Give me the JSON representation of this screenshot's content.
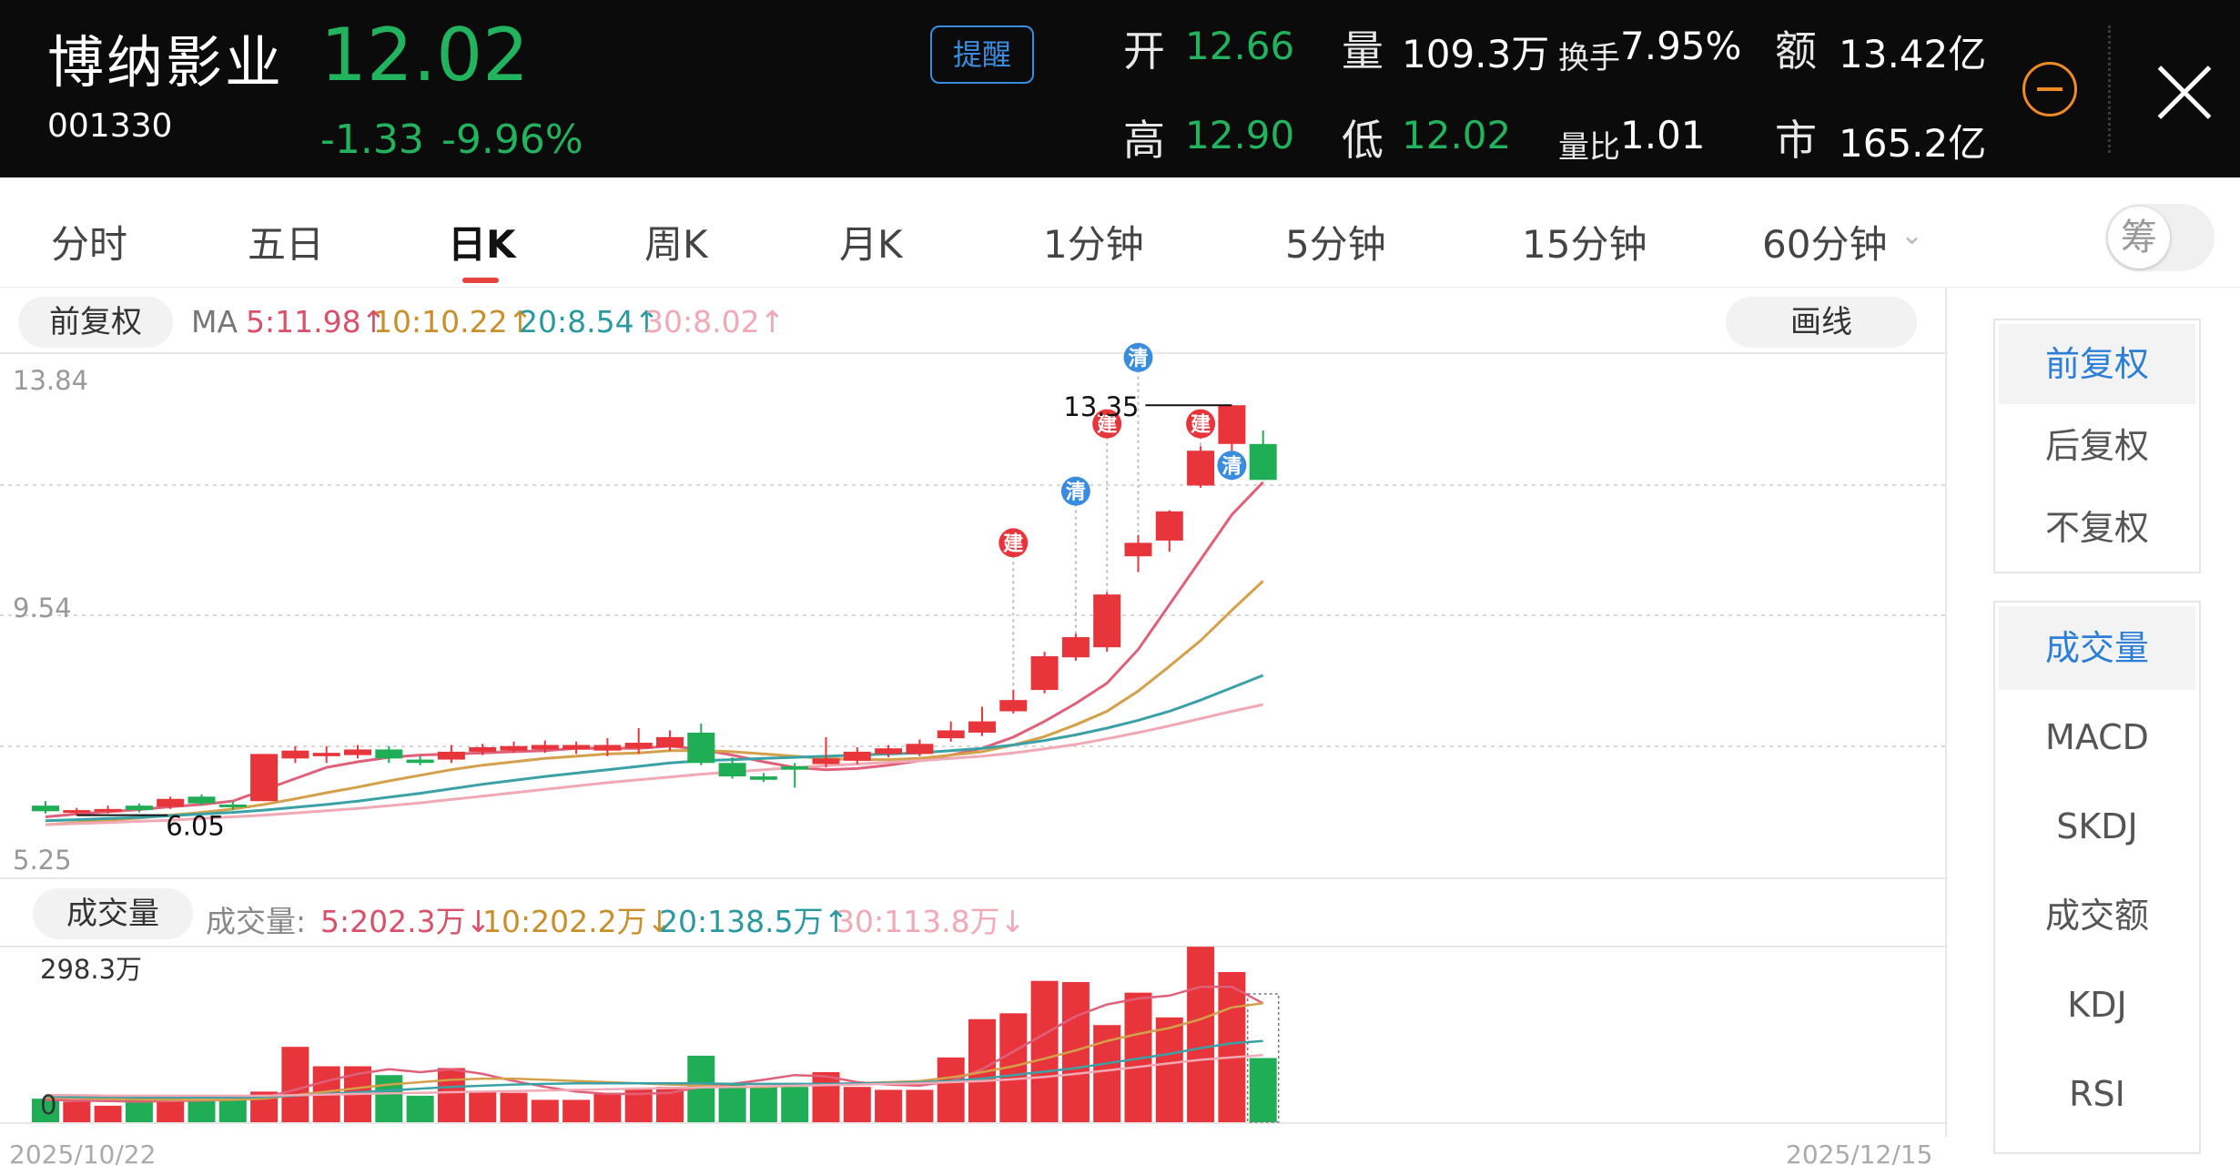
{
  "header": {
    "name": "博纳影业",
    "code": "001330",
    "price": "12.02",
    "change": "-1.33",
    "change_pct": "-9.96%",
    "remind": "提醒",
    "quotes": {
      "open_label": "开",
      "open": "12.66",
      "volume_label": "量",
      "volume": "109.3万",
      "turnover_label": "换手",
      "turnover": "7.95%",
      "amount_label": "额",
      "amount": "13.42亿",
      "high_label": "高",
      "high": "12.90",
      "low_label": "低",
      "low": "12.02",
      "volratio_label": "量比",
      "volratio": "1.01",
      "mcap_label": "市",
      "mcap": "165.2亿"
    },
    "colors": {
      "up": "#e8353b",
      "down": "#1fae55",
      "accent": "#3a8dde",
      "orange": "#f08a24"
    }
  },
  "tabs": [
    "分时",
    "五日",
    "日K",
    "周K",
    "月K",
    "1分钟",
    "5分钟",
    "15分钟",
    "60分钟"
  ],
  "active_tab": "日K",
  "chip_label": "筹",
  "kline_header": {
    "adjust": "前复权",
    "ma_label": "MA",
    "ma5": "5:11.98↑",
    "ma10": "10:10.22↑",
    "ma20": "20:8.54↑",
    "ma30": "30:8.02↑",
    "draw_line": "画线"
  },
  "volume_header": {
    "label": "成交量",
    "prefix": "成交量:",
    "ma5": "5:202.3万↓",
    "ma10": "10:202.2万↓",
    "ma20": "20:138.5万↑",
    "ma30": "30:113.8万↓"
  },
  "right_panel": {
    "adjust_options": [
      "前复权",
      "后复权",
      "不复权"
    ],
    "indicator_options": [
      "成交量",
      "MACD",
      "SKDJ",
      "成交额",
      "KDJ",
      "RSI"
    ]
  },
  "chart_data": {
    "type": "candlestick",
    "y_axis_labels": [
      "13.84",
      "9.54",
      "5.25"
    ],
    "ylim": [
      5.25,
      13.84
    ],
    "vol_axis_labels": [
      "298.3万",
      "0"
    ],
    "vol_max": 298.3,
    "x_start_label": "2025/10/22",
    "x_end_label": "2025/12/15",
    "max_marker": "13.35",
    "min_marker": "6.05",
    "candles": [
      {
        "o": 6.22,
        "c": 6.12,
        "h": 6.3,
        "l": 6.08,
        "v": 40
      },
      {
        "o": 6.1,
        "c": 6.14,
        "h": 6.18,
        "l": 6.05,
        "v": 35
      },
      {
        "o": 6.12,
        "c": 6.16,
        "h": 6.22,
        "l": 6.08,
        "v": 28
      },
      {
        "o": 6.22,
        "c": 6.14,
        "h": 6.26,
        "l": 6.1,
        "v": 38
      },
      {
        "o": 6.2,
        "c": 6.34,
        "h": 6.38,
        "l": 6.16,
        "v": 40
      },
      {
        "o": 6.38,
        "c": 6.26,
        "h": 6.42,
        "l": 6.22,
        "v": 38
      },
      {
        "o": 6.24,
        "c": 6.2,
        "h": 6.3,
        "l": 6.14,
        "v": 38
      },
      {
        "o": 6.3,
        "c": 7.14,
        "h": 7.14,
        "l": 6.3,
        "v": 52
      },
      {
        "o": 7.06,
        "c": 7.2,
        "h": 7.28,
        "l": 6.98,
        "v": 128
      },
      {
        "o": 7.1,
        "c": 7.16,
        "h": 7.28,
        "l": 6.98,
        "v": 95
      },
      {
        "o": 7.12,
        "c": 7.22,
        "h": 7.3,
        "l": 7.06,
        "v": 95
      },
      {
        "o": 7.22,
        "c": 7.06,
        "h": 7.28,
        "l": 6.98,
        "v": 80
      },
      {
        "o": 7.04,
        "c": 6.98,
        "h": 7.1,
        "l": 6.94,
        "v": 45
      },
      {
        "o": 7.04,
        "c": 7.18,
        "h": 7.3,
        "l": 6.98,
        "v": 92
      },
      {
        "o": 7.18,
        "c": 7.26,
        "h": 7.32,
        "l": 7.12,
        "v": 52
      },
      {
        "o": 7.2,
        "c": 7.28,
        "h": 7.36,
        "l": 7.16,
        "v": 50
      },
      {
        "o": 7.22,
        "c": 7.3,
        "h": 7.38,
        "l": 7.16,
        "v": 38
      },
      {
        "o": 7.22,
        "c": 7.3,
        "h": 7.36,
        "l": 7.14,
        "v": 38
      },
      {
        "o": 7.2,
        "c": 7.3,
        "h": 7.42,
        "l": 7.1,
        "v": 50
      },
      {
        "o": 7.24,
        "c": 7.34,
        "h": 7.6,
        "l": 7.14,
        "v": 58
      },
      {
        "o": 7.26,
        "c": 7.44,
        "h": 7.56,
        "l": 7.2,
        "v": 60
      },
      {
        "o": 7.52,
        "c": 6.98,
        "h": 7.68,
        "l": 6.94,
        "v": 113
      },
      {
        "o": 6.98,
        "c": 6.74,
        "h": 7.08,
        "l": 6.7,
        "v": 64
      },
      {
        "o": 6.74,
        "c": 6.68,
        "h": 6.8,
        "l": 6.64,
        "v": 60
      },
      {
        "o": 6.92,
        "c": 6.86,
        "h": 6.98,
        "l": 6.54,
        "v": 60
      },
      {
        "o": 6.96,
        "c": 7.06,
        "h": 7.44,
        "l": 6.9,
        "v": 85
      },
      {
        "o": 7.02,
        "c": 7.18,
        "h": 7.26,
        "l": 6.96,
        "v": 60
      },
      {
        "o": 7.14,
        "c": 7.24,
        "h": 7.3,
        "l": 7.08,
        "v": 55
      },
      {
        "o": 7.14,
        "c": 7.32,
        "h": 7.4,
        "l": 7.1,
        "v": 55
      },
      {
        "o": 7.42,
        "c": 7.56,
        "h": 7.72,
        "l": 7.36,
        "v": 110
      },
      {
        "o": 7.52,
        "c": 7.72,
        "h": 7.98,
        "l": 7.46,
        "v": 175
      },
      {
        "o": 7.9,
        "c": 8.1,
        "h": 8.28,
        "l": 7.86,
        "v": 185
      },
      {
        "o": 8.28,
        "c": 8.88,
        "h": 8.96,
        "l": 8.22,
        "v": 240
      },
      {
        "o": 8.86,
        "c": 9.22,
        "h": 9.28,
        "l": 8.8,
        "v": 238
      },
      {
        "o": 9.04,
        "c": 9.98,
        "h": 10.02,
        "l": 8.96,
        "v": 165
      },
      {
        "o": 10.66,
        "c": 10.9,
        "h": 11.04,
        "l": 10.38,
        "v": 220
      },
      {
        "o": 10.94,
        "c": 11.46,
        "h": 11.48,
        "l": 10.74,
        "v": 178
      },
      {
        "o": 11.92,
        "c": 12.54,
        "h": 12.62,
        "l": 11.88,
        "v": 298
      },
      {
        "o": 12.66,
        "c": 13.35,
        "h": 13.35,
        "l": 12.02,
        "v": 255
      },
      {
        "o": 12.66,
        "c": 12.02,
        "h": 12.9,
        "l": 12.02,
        "v": 109
      }
    ],
    "ma_series": [
      {
        "name": "MA5",
        "color": "#e0607a",
        "values": [
          6.02,
          6.07,
          6.11,
          6.15,
          6.2,
          6.24,
          6.3,
          6.5,
          6.7,
          6.9,
          7.0,
          7.08,
          7.12,
          7.14,
          7.16,
          7.18,
          7.2,
          7.24,
          7.24,
          7.24,
          7.28,
          7.22,
          7.12,
          7.0,
          6.9,
          6.86,
          6.88,
          6.94,
          7.02,
          7.12,
          7.24,
          7.44,
          7.72,
          8.04,
          8.4,
          9.0,
          9.8,
          10.6,
          11.4,
          11.98
        ]
      },
      {
        "name": "MA10",
        "color": "#d4a04a",
        "values": [
          5.88,
          5.92,
          5.96,
          6.0,
          6.05,
          6.1,
          6.16,
          6.24,
          6.34,
          6.45,
          6.55,
          6.66,
          6.76,
          6.86,
          6.94,
          7.0,
          7.06,
          7.1,
          7.14,
          7.16,
          7.2,
          7.2,
          7.18,
          7.14,
          7.1,
          7.06,
          7.04,
          7.04,
          7.06,
          7.12,
          7.18,
          7.3,
          7.45,
          7.66,
          7.9,
          8.26,
          8.7,
          9.16,
          9.7,
          10.22
        ]
      },
      {
        "name": "MA20",
        "color": "#3aa1a6",
        "values": [
          5.95,
          5.97,
          5.99,
          6.01,
          6.04,
          6.07,
          6.1,
          6.14,
          6.19,
          6.24,
          6.3,
          6.37,
          6.44,
          6.52,
          6.6,
          6.67,
          6.74,
          6.8,
          6.86,
          6.92,
          6.98,
          7.02,
          7.04,
          7.06,
          7.08,
          7.1,
          7.12,
          7.14,
          7.16,
          7.2,
          7.24,
          7.3,
          7.38,
          7.48,
          7.6,
          7.74,
          7.9,
          8.1,
          8.32,
          8.54
        ]
      },
      {
        "name": "MA30",
        "color": "#f0a9b5",
        "values": [
          5.88,
          5.9,
          5.92,
          5.94,
          5.96,
          5.99,
          6.02,
          6.05,
          6.09,
          6.13,
          6.17,
          6.22,
          6.27,
          6.33,
          6.39,
          6.45,
          6.51,
          6.57,
          6.63,
          6.68,
          6.73,
          6.78,
          6.82,
          6.86,
          6.9,
          6.93,
          6.96,
          6.99,
          7.02,
          7.06,
          7.1,
          7.16,
          7.23,
          7.31,
          7.41,
          7.52,
          7.64,
          7.77,
          7.9,
          8.02
        ]
      }
    ],
    "vol_ma_series": [
      {
        "name": "MA5",
        "color": "#e0607a",
        "values": [
          38,
          37,
          36,
          35,
          36,
          37,
          38,
          42,
          55,
          70,
          82,
          90,
          85,
          90,
          82,
          70,
          60,
          52,
          48,
          48,
          50,
          60,
          65,
          72,
          80,
          78,
          68,
          64,
          62,
          70,
          90,
          120,
          150,
          180,
          200,
          210,
          215,
          230,
          230,
          202
        ]
      },
      {
        "name": "MA10",
        "color": "#d4a04a",
        "values": [
          42,
          41,
          40,
          39,
          38,
          38,
          38,
          40,
          46,
          52,
          58,
          64,
          68,
          72,
          74,
          74,
          72,
          70,
          68,
          66,
          64,
          62,
          60,
          60,
          62,
          64,
          66,
          68,
          70,
          76,
          85,
          95,
          108,
          122,
          138,
          150,
          160,
          175,
          195,
          202
        ]
      },
      {
        "name": "MA20",
        "color": "#3aa1a6",
        "values": [
          44,
          43,
          43,
          42,
          42,
          42,
          42,
          43,
          45,
          48,
          51,
          54,
          57,
          60,
          62,
          64,
          65,
          66,
          66,
          66,
          66,
          66,
          65,
          65,
          65,
          65,
          66,
          67,
          68,
          70,
          74,
          80,
          86,
          92,
          100,
          108,
          116,
          126,
          134,
          138
        ]
      },
      {
        "name": "MA30",
        "color": "#f0a9b5",
        "values": [
          46,
          46,
          45,
          45,
          45,
          45,
          45,
          45,
          46,
          47,
          48,
          49,
          50,
          51,
          52,
          53,
          54,
          55,
          56,
          57,
          58,
          59,
          60,
          61,
          62,
          63,
          64,
          65,
          66,
          68,
          70,
          73,
          77,
          82,
          88,
          94,
          100,
          106,
          110,
          114
        ]
      }
    ],
    "signals": [
      {
        "i": 31,
        "text": "建",
        "color": "#e8353b",
        "value": 10.9
      },
      {
        "i": 33,
        "text": "清",
        "color": "#3a8dde",
        "value": 11.82
      },
      {
        "i": 34,
        "text": "建",
        "color": "#e8353b",
        "value": 13.02
      },
      {
        "i": 35,
        "text": "清",
        "color": "#3a8dde",
        "value": 14.2
      },
      {
        "i": 37,
        "text": "建",
        "color": "#e8353b",
        "value": 13.02
      },
      {
        "i": 38,
        "text": "清",
        "color": "#3a8dde",
        "value": 12.28
      }
    ]
  }
}
